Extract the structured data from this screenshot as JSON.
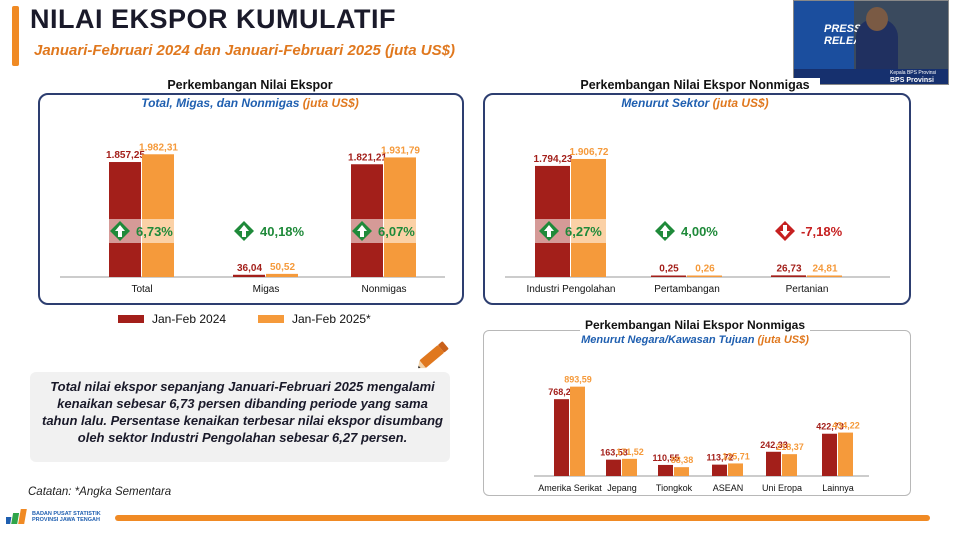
{
  "header": {
    "title": "NILAI EKSPOR KUMULATIF",
    "subtitle": "Januari-Februari 2024 dan Januari-Februari 2025 (juta US$)"
  },
  "colors": {
    "series_2024": "#a31f1a",
    "series_2025": "#f59a3b",
    "up": "#1f8a3a",
    "down": "#c62020",
    "panel_border": "#2d3e70"
  },
  "panel1": {
    "title": "Perkembangan Nilai Ekspor",
    "subtitle": "Total, Migas, dan Nonmigas",
    "unit": "(juta US$)"
  },
  "panel2": {
    "title": "Perkembangan Nilai Ekspor Nonmigas",
    "subtitle": "Menurut Sektor",
    "unit": "(juta US$)"
  },
  "panel3": {
    "title": "Perkembangan Nilai Ekspor Nonmigas",
    "subtitle": "Menurut Negara/Kawasan Tujuan",
    "unit": "(juta US$)"
  },
  "legend": {
    "s1": "Jan-Feb 2024",
    "s2": "Jan-Feb 2025*"
  },
  "summary_text": "Total nilai ekspor sepanjang Januari-Februari 2025 mengalami kenaikan sebesar 6,73 persen dibanding periode yang sama tahun lalu. Persentase kenaikan terbesar nilai ekspor disumbang oleh sektor Industri Pengolahan sebesar 6,27 persen.",
  "note": "Catatan: *Angka Sementara",
  "bps_logo_text": [
    "BADAN PUSAT STATISTIK",
    "PROVINSI JAWA TENGAH"
  ],
  "video": {
    "screen_text": [
      "PRESS",
      "RELEA"
    ],
    "caption_name": "Kepala BPS Provinsi",
    "caption_org": "BPS Provinsi Jawa Tengah"
  },
  "chart_data": [
    {
      "type": "bar",
      "categories": [
        "Total",
        "Migas",
        "Nonmigas"
      ],
      "series": [
        {
          "name": "Jan-Feb 2024",
          "values": [
            1857.25,
            36.04,
            1821.21
          ],
          "labels": [
            "1.857,25",
            "36,04",
            "1.821,21"
          ]
        },
        {
          "name": "Jan-Feb 2025*",
          "values": [
            1982.31,
            50.52,
            1931.79
          ],
          "labels": [
            "1.982,31",
            "50,52",
            "1.931,79"
          ]
        }
      ],
      "changes": [
        {
          "label": "6,73%",
          "direction": "up"
        },
        {
          "label": "40,18%",
          "direction": "up"
        },
        {
          "label": "6,07%",
          "direction": "up"
        }
      ],
      "ylim": [
        0,
        2100
      ]
    },
    {
      "type": "bar",
      "categories": [
        "Industri Pengolahan",
        "Pertambangan",
        "Pertanian"
      ],
      "series": [
        {
          "name": "Jan-Feb 2024",
          "values": [
            1794.23,
            0.25,
            26.73
          ],
          "labels": [
            "1.794,23",
            "0,25",
            "26,73"
          ]
        },
        {
          "name": "Jan-Feb 2025*",
          "values": [
            1906.72,
            0.26,
            24.81
          ],
          "labels": [
            "1.906,72",
            "0,26",
            "24,81"
          ]
        }
      ],
      "changes": [
        {
          "label": "6,27%",
          "direction": "up"
        },
        {
          "label": "4,00%",
          "direction": "up"
        },
        {
          "label": "-7,18%",
          "direction": "down"
        }
      ],
      "ylim": [
        0,
        2100
      ]
    },
    {
      "type": "bar",
      "categories": [
        "Amerika Serikat",
        "Jepang",
        "Tiongkok",
        "ASEAN",
        "Uni Eropa",
        "Lainnya"
      ],
      "series": [
        {
          "name": "Jan-Feb 2024",
          "values": [
            768.27,
            163.53,
            110.55,
            113.72,
            242.33,
            422.73
          ],
          "labels": [
            "768,27",
            "163,53",
            "110,55",
            "113,72",
            "242,33",
            "422,73"
          ]
        },
        {
          "name": "Jan-Feb 2025*",
          "values": [
            893.59,
            171.52,
            88.38,
            125.71,
            218.37,
            434.22
          ],
          "labels": [
            "893,59",
            "171,52",
            "88,38",
            "125,71",
            "218,37",
            "434,22"
          ]
        }
      ],
      "ylim": [
        0,
        950
      ]
    }
  ]
}
